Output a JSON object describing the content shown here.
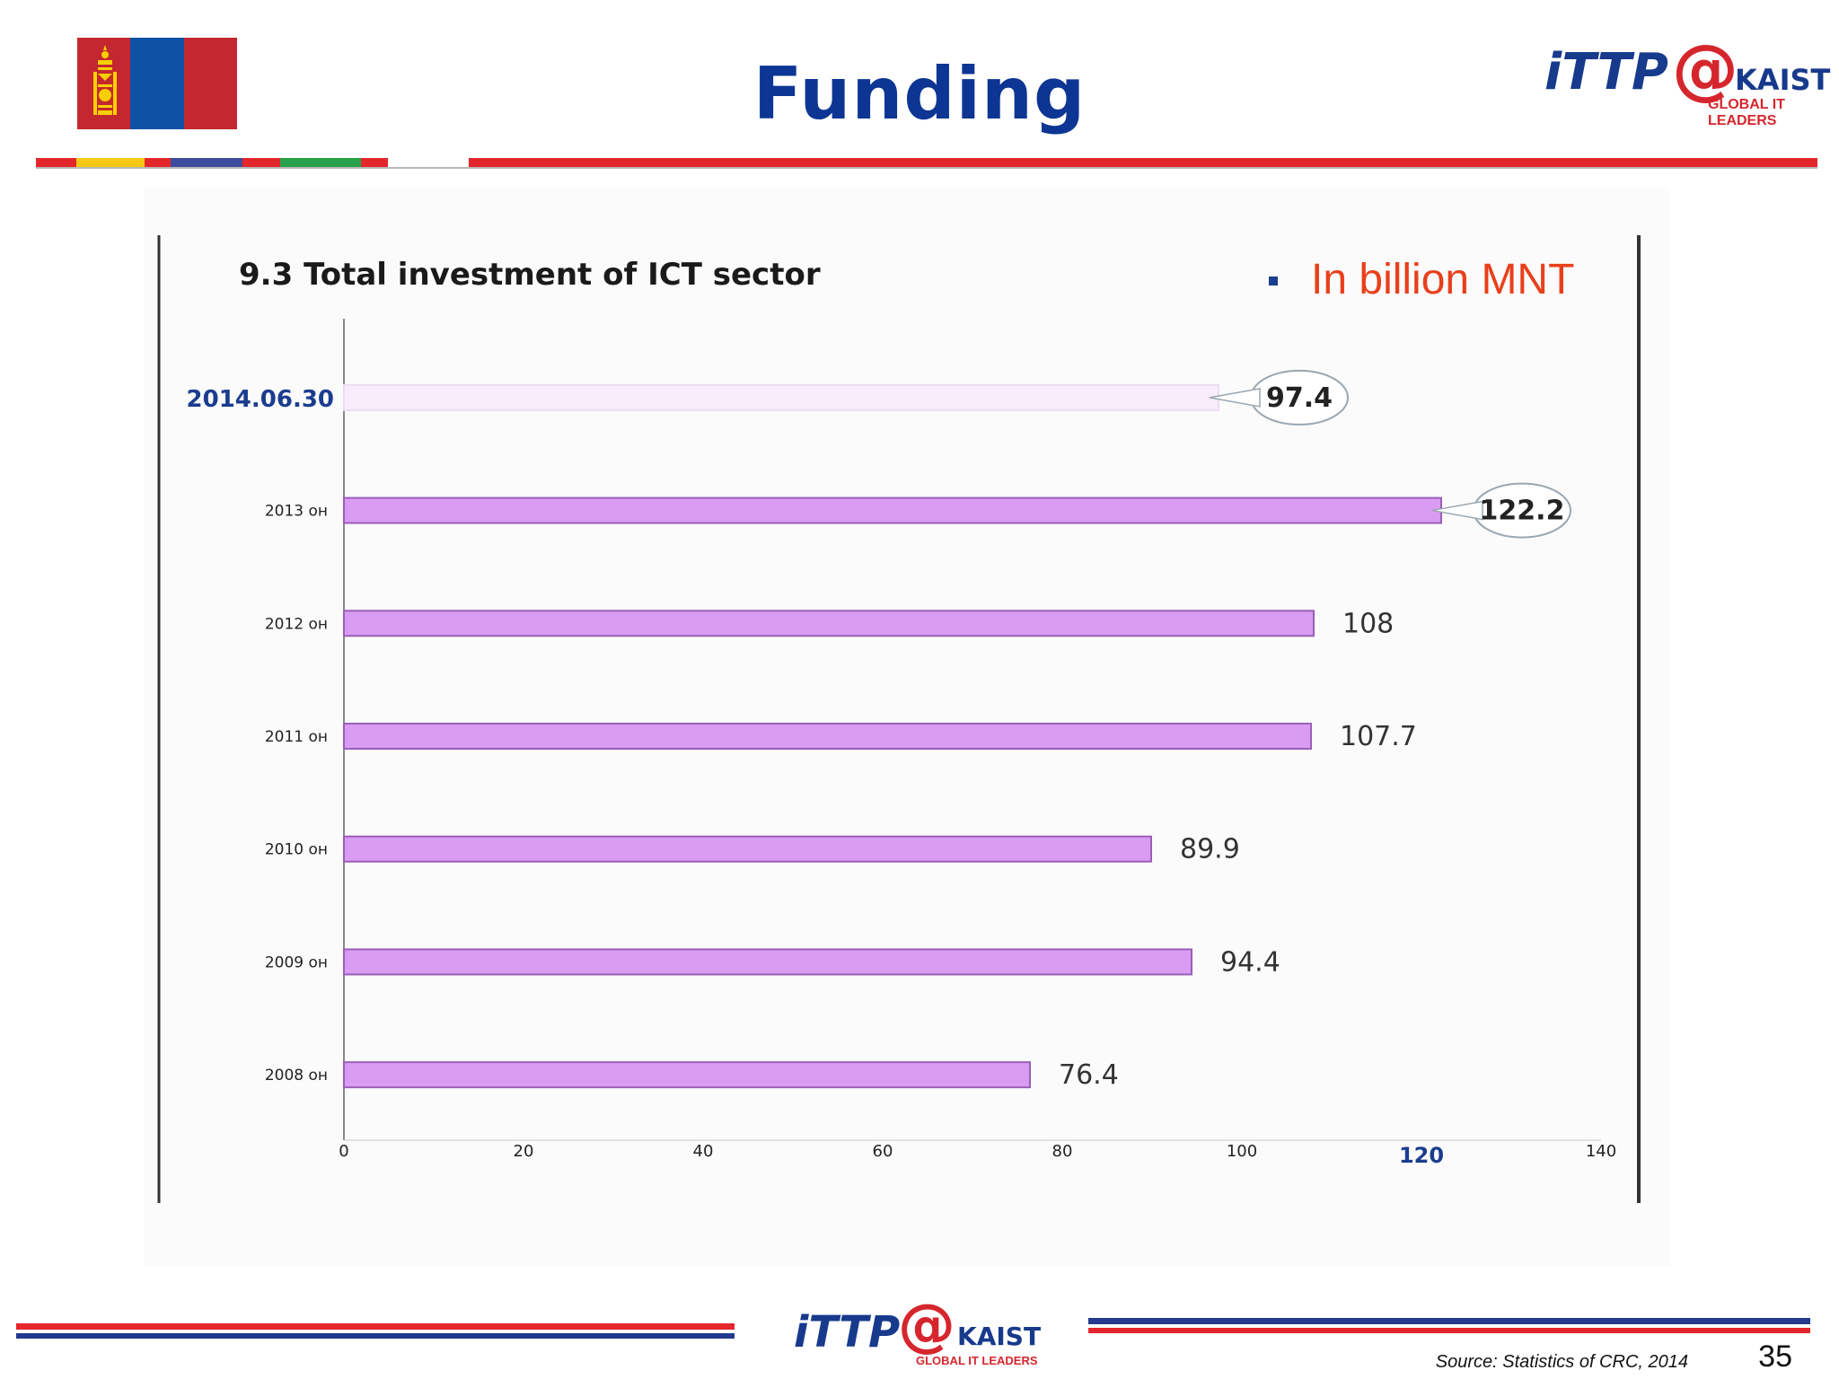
{
  "slide": {
    "title": "Funding",
    "page_number": "35",
    "source": "Source: Statistics of CRC, 2014"
  },
  "logo": {
    "brand": "iTTP",
    "at": "@",
    "partner": "KAIST",
    "tagline": "GLOBAL IT LEADERS"
  },
  "flag": {
    "colors": [
      "#c4272f",
      "#0f52a5",
      "#c4272f"
    ],
    "symbol_color": "#f9cf02"
  },
  "unit_note": "In billion MNT",
  "colors": {
    "title": "#0d3593",
    "bar_fill": "#d99cf2",
    "bar_stroke": "#9a5fb8",
    "highlight_bar_fill": "#f8eefb",
    "unit_text": "#e8401b",
    "rule_red": "#e3262b",
    "rule_blue": "#233a8f"
  },
  "chart_data": {
    "type": "bar",
    "orientation": "horizontal",
    "title": "9.3 Total investment of ICT sector",
    "categories": [
      "2014.06.30",
      "2013 он",
      "2012 он",
      "2011 он",
      "2010 он",
      "2009 он",
      "2008 он"
    ],
    "values": [
      97.4,
      122.2,
      108,
      107.7,
      89.9,
      94.4,
      76.4
    ],
    "value_labels": [
      "97.4",
      "122.2",
      "108",
      "107.7",
      "89.9",
      "94.4",
      "76.4"
    ],
    "callout_categories": [
      "2014.06.30",
      "2013 он"
    ],
    "xlim": [
      0,
      140
    ],
    "xticks": [
      "0",
      "20",
      "40",
      "60",
      "80",
      "100",
      "120",
      "140"
    ],
    "grid": false
  }
}
